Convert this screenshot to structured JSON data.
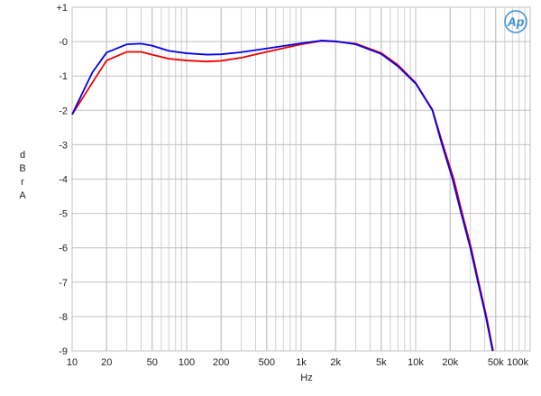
{
  "chart_data": {
    "type": "line",
    "logo": "Ap",
    "x_label": "Hz",
    "y_label": "dBr A",
    "xlim": [
      10,
      100000
    ],
    "xscale": "log",
    "xticks": [
      10,
      20,
      50,
      100,
      200,
      500,
      {
        "value": 1000,
        "label": "1k"
      },
      {
        "value": 2000,
        "label": "2k"
      },
      {
        "value": 5000,
        "label": "5k"
      },
      {
        "value": 10000,
        "label": "10k"
      },
      {
        "value": 20000,
        "label": "20k"
      },
      {
        "value": 50000,
        "label": "50k"
      },
      {
        "value": 100000,
        "label": "100k"
      }
    ],
    "ylim": [
      -9,
      1
    ],
    "yticks": [
      {
        "value": 1,
        "label": "+1"
      },
      {
        "value": 0,
        "label": "-0"
      },
      -1,
      -2,
      -3,
      -4,
      -5,
      -6,
      -7,
      -8,
      -9
    ],
    "grid": true,
    "series": [
      {
        "color": "#0000ee",
        "x": [
          10,
          15,
          20,
          30,
          40,
          50,
          70,
          100,
          150,
          200,
          300,
          500,
          1000,
          1500,
          2000,
          3000,
          5000,
          7000,
          10000,
          14000,
          17000,
          21000,
          25000,
          30000,
          35000,
          41000,
          47000
        ],
        "values": [
          -2.12,
          -0.9,
          -0.32,
          -0.08,
          -0.06,
          -0.12,
          -0.27,
          -0.34,
          -0.38,
          -0.37,
          -0.31,
          -0.2,
          -0.05,
          0.03,
          0.01,
          -0.08,
          -0.36,
          -0.72,
          -1.22,
          -2,
          -3,
          -4,
          -5,
          -6,
          -7,
          -8,
          -9
        ]
      },
      {
        "color": "#ee0000",
        "x": [
          10,
          15,
          20,
          30,
          40,
          50,
          70,
          100,
          150,
          200,
          300,
          500,
          1000,
          1500,
          2000,
          3000,
          5000,
          7000,
          10000,
          14000,
          17300,
          21500,
          25500,
          30500,
          35500,
          41500,
          47500
        ],
        "values": [
          -2.12,
          -1.2,
          -0.55,
          -0.3,
          -0.3,
          -0.38,
          -0.5,
          -0.55,
          -0.58,
          -0.56,
          -0.47,
          -0.3,
          -0.08,
          0.02,
          0,
          -0.06,
          -0.33,
          -0.68,
          -1.2,
          -1.98,
          -3,
          -4,
          -5,
          -6,
          -7,
          -8,
          -9
        ]
      }
    ]
  }
}
